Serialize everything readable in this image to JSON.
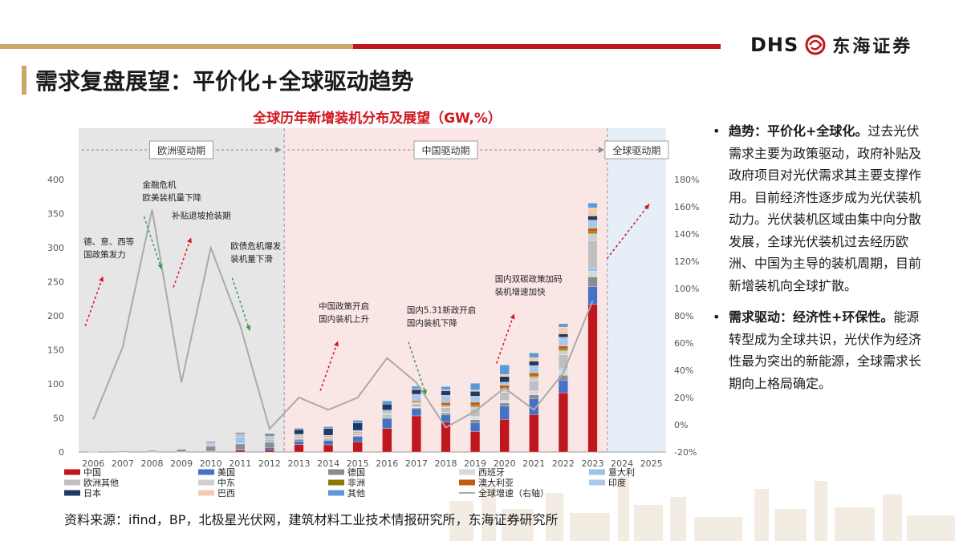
{
  "page": {
    "title": "需求复盘展望：平价化+全球驱动趋势",
    "logo_text": "DHS",
    "logo_cn": "东海证券",
    "source": "资料来源：ifind，BP，北极星光伏网，建筑材料工业技术情报研究所，东海证券研究所"
  },
  "colors": {
    "brand_red": "#c0161d",
    "brand_gold": "#c9a86a",
    "title_red": "#d2161d"
  },
  "bullets": [
    {
      "lead": "趋势：平价化+全球化。",
      "text": "过去光伏需求主要为政策驱动，政府补贴及政府项目对光伏需求其主要支撑作用。目前经济性逐步成为光伏装机动力。光伏装机区域由集中向分散发展，全球光伏装机过去经历欧洲、中国为主导的装机周期，目前新增装机向全球扩散。"
    },
    {
      "lead": "需求驱动：经济性+环保性。",
      "text": "能源转型成为全球共识，光伏作为经济性最为突出的新能源，全球需求长期向上格局确定。"
    }
  ],
  "chart_data": {
    "type": "bar",
    "stacked": true,
    "title": "全球历年新增装机分布及展望（GW,%）",
    "categories": [
      "2006",
      "2007",
      "2008",
      "2009",
      "2010",
      "2011",
      "2012",
      "2013",
      "2014",
      "2015",
      "2016",
      "2017",
      "2018",
      "2019",
      "2020",
      "2021",
      "2022",
      "2023",
      "2024",
      "2025"
    ],
    "ylim": [
      0,
      400
    ],
    "yticks": [
      "0",
      "50",
      "100",
      "150",
      "200",
      "250",
      "300",
      "350",
      "400"
    ],
    "y2lim": [
      -20,
      180
    ],
    "y2ticks": [
      "-20%",
      "0%",
      "20%",
      "40%",
      "60%",
      "80%",
      "100%",
      "120%",
      "140%",
      "160%",
      "180%"
    ],
    "periods": [
      {
        "label": "欧洲驱动期",
        "start": "2006",
        "end": "2012",
        "color": "#e6e6e6"
      },
      {
        "label": "中国驱动期",
        "start": "2013",
        "end": "2023",
        "color": "#fbe6e6"
      },
      {
        "label": "全球驱动期",
        "start": "2024",
        "end": "2025",
        "color": "#e6eef8"
      }
    ],
    "series": [
      {
        "name": "中国",
        "color": "#c0161d",
        "values": [
          0,
          0,
          0,
          0,
          0.5,
          2.5,
          3.5,
          10.9,
          10.6,
          15.2,
          34.5,
          53,
          44,
          30,
          48,
          55,
          87,
          217,
          null,
          null
        ]
      },
      {
        "name": "美国",
        "color": "#4472c4",
        "values": [
          0,
          0.1,
          0.3,
          0.4,
          0.9,
          1.9,
          3.4,
          4.8,
          6.2,
          7.3,
          14.7,
          10.6,
          10.6,
          13.3,
          19.2,
          23.6,
          18.6,
          26,
          null,
          null
        ]
      },
      {
        "name": "德国",
        "color": "#8c8c8c",
        "values": [
          0.9,
          1.3,
          1.9,
          3.8,
          7.4,
          7.5,
          7.6,
          3.3,
          1.9,
          1.4,
          1.5,
          1.8,
          2.9,
          3.9,
          4.8,
          5.3,
          7.2,
          14.1,
          null,
          null
        ]
      },
      {
        "name": "西班牙",
        "color": "#d9d9d9",
        "values": [
          0.1,
          0.6,
          2.7,
          0.1,
          0.4,
          0.4,
          0.3,
          0.1,
          0,
          0,
          0,
          0.1,
          0.3,
          4.4,
          2.8,
          4.9,
          7.5,
          8.2,
          null,
          null
        ]
      },
      {
        "name": "意大利",
        "color": "#9dc3e6",
        "values": [
          0,
          0.1,
          0.3,
          0.7,
          2.3,
          9.4,
          3.6,
          1.5,
          0.4,
          0.3,
          0.4,
          0.4,
          0.4,
          0.8,
          0.8,
          0.9,
          2.5,
          5.2,
          null,
          null
        ]
      },
      {
        "name": "欧洲其他",
        "color": "#bfbfbf",
        "values": [
          0.2,
          0.2,
          0.6,
          1.2,
          2.5,
          3.5,
          3.5,
          3,
          3,
          3.5,
          4,
          5,
          7,
          11,
          12,
          15,
          20,
          40,
          null,
          null
        ]
      },
      {
        "name": "中东",
        "color": "#cfcfcf",
        "values": [
          0,
          0,
          0,
          0,
          0,
          0,
          0,
          0.2,
          0.3,
          0.5,
          0.8,
          1.5,
          2,
          3,
          4,
          5,
          6,
          10,
          null,
          null
        ]
      },
      {
        "name": "非洲",
        "color": "#8c7a00",
        "values": [
          0,
          0,
          0,
          0,
          0,
          0,
          0.1,
          0.3,
          0.5,
          0.5,
          0.6,
          1.5,
          1.5,
          2,
          2,
          2,
          2.5,
          3,
          null,
          null
        ]
      },
      {
        "name": "澳大利亚",
        "color": "#c55a11",
        "values": [
          0,
          0,
          0,
          0.1,
          0.4,
          0.8,
          1,
          0.8,
          0.9,
          0.9,
          0.8,
          1.3,
          3.8,
          4.7,
          4.6,
          4.6,
          4.2,
          5,
          null,
          null
        ]
      },
      {
        "name": "印度",
        "color": "#a9c8e8",
        "values": [
          0,
          0,
          0,
          0,
          0,
          0.2,
          1,
          1.1,
          0.8,
          2.2,
          4.3,
          9.6,
          10.8,
          8.9,
          4.4,
          10.7,
          13,
          12,
          null,
          null
        ]
      },
      {
        "name": "日本",
        "color": "#203864",
        "values": [
          0.3,
          0.2,
          0.2,
          0.5,
          1,
          1.3,
          1.7,
          6.9,
          9.7,
          10.8,
          8.6,
          7,
          6.7,
          7,
          8.2,
          6.5,
          5,
          6,
          null,
          null
        ]
      },
      {
        "name": "巴西",
        "color": "#f8cbad",
        "values": [
          0,
          0,
          0,
          0,
          0,
          0,
          0,
          0,
          0,
          0,
          0,
          0.9,
          1.2,
          2,
          3.1,
          5,
          9.9,
          11.9,
          null,
          null
        ]
      },
      {
        "name": "其他",
        "color": "#5b9bd5",
        "values": [
          0,
          0,
          0.2,
          0.3,
          0.6,
          1.3,
          1.5,
          2,
          3,
          4,
          5,
          4,
          5,
          10,
          14,
          7,
          5,
          7,
          null,
          null
        ]
      }
    ],
    "growth": {
      "name": "全球增速（右轴）",
      "color": "#aaaaaa",
      "values": [
        4,
        57,
        158,
        31,
        130,
        73,
        -3,
        20,
        11,
        20,
        49,
        31,
        -2,
        10,
        27,
        11,
        38,
        91,
        null,
        null
      ]
    },
    "annotations": [
      {
        "text": [
          "德、意、西等",
          "国政策发力"
        ],
        "x": "2006",
        "y": 305,
        "dir": "up",
        "arrow_color": "#d2161d"
      },
      {
        "text": [
          "金融危机",
          "欧美装机量下降"
        ],
        "x": "2008",
        "y": 388,
        "dir": "down",
        "arrow_color": "#2e9e4a"
      },
      {
        "text": [
          "补贴退坡抢装期"
        ],
        "x": "2009",
        "y": 343,
        "dir": "up",
        "arrow_color": "#d2161d"
      },
      {
        "text": [
          "欧债危机爆发",
          "装机量下滑"
        ],
        "x": "2011",
        "y": 298,
        "dir": "down",
        "arrow_color": "#2e9e4a"
      },
      {
        "text": [
          "中国政策开启",
          "国内装机上升"
        ],
        "x": "2014",
        "y": 210,
        "dir": "up",
        "arrow_color": "#d2161d"
      },
      {
        "text": [
          "国内5.31新政开启",
          "国内装机下降"
        ],
        "x": "2017",
        "y": 204,
        "dir": "down",
        "arrow_color": "#2e9e4a"
      },
      {
        "text": [
          "国内双碳政策加码",
          "装机增速加快"
        ],
        "x": "2020",
        "y": 250,
        "dir": "up",
        "arrow_color": "#d2161d"
      }
    ],
    "legend_position": "bottom"
  }
}
